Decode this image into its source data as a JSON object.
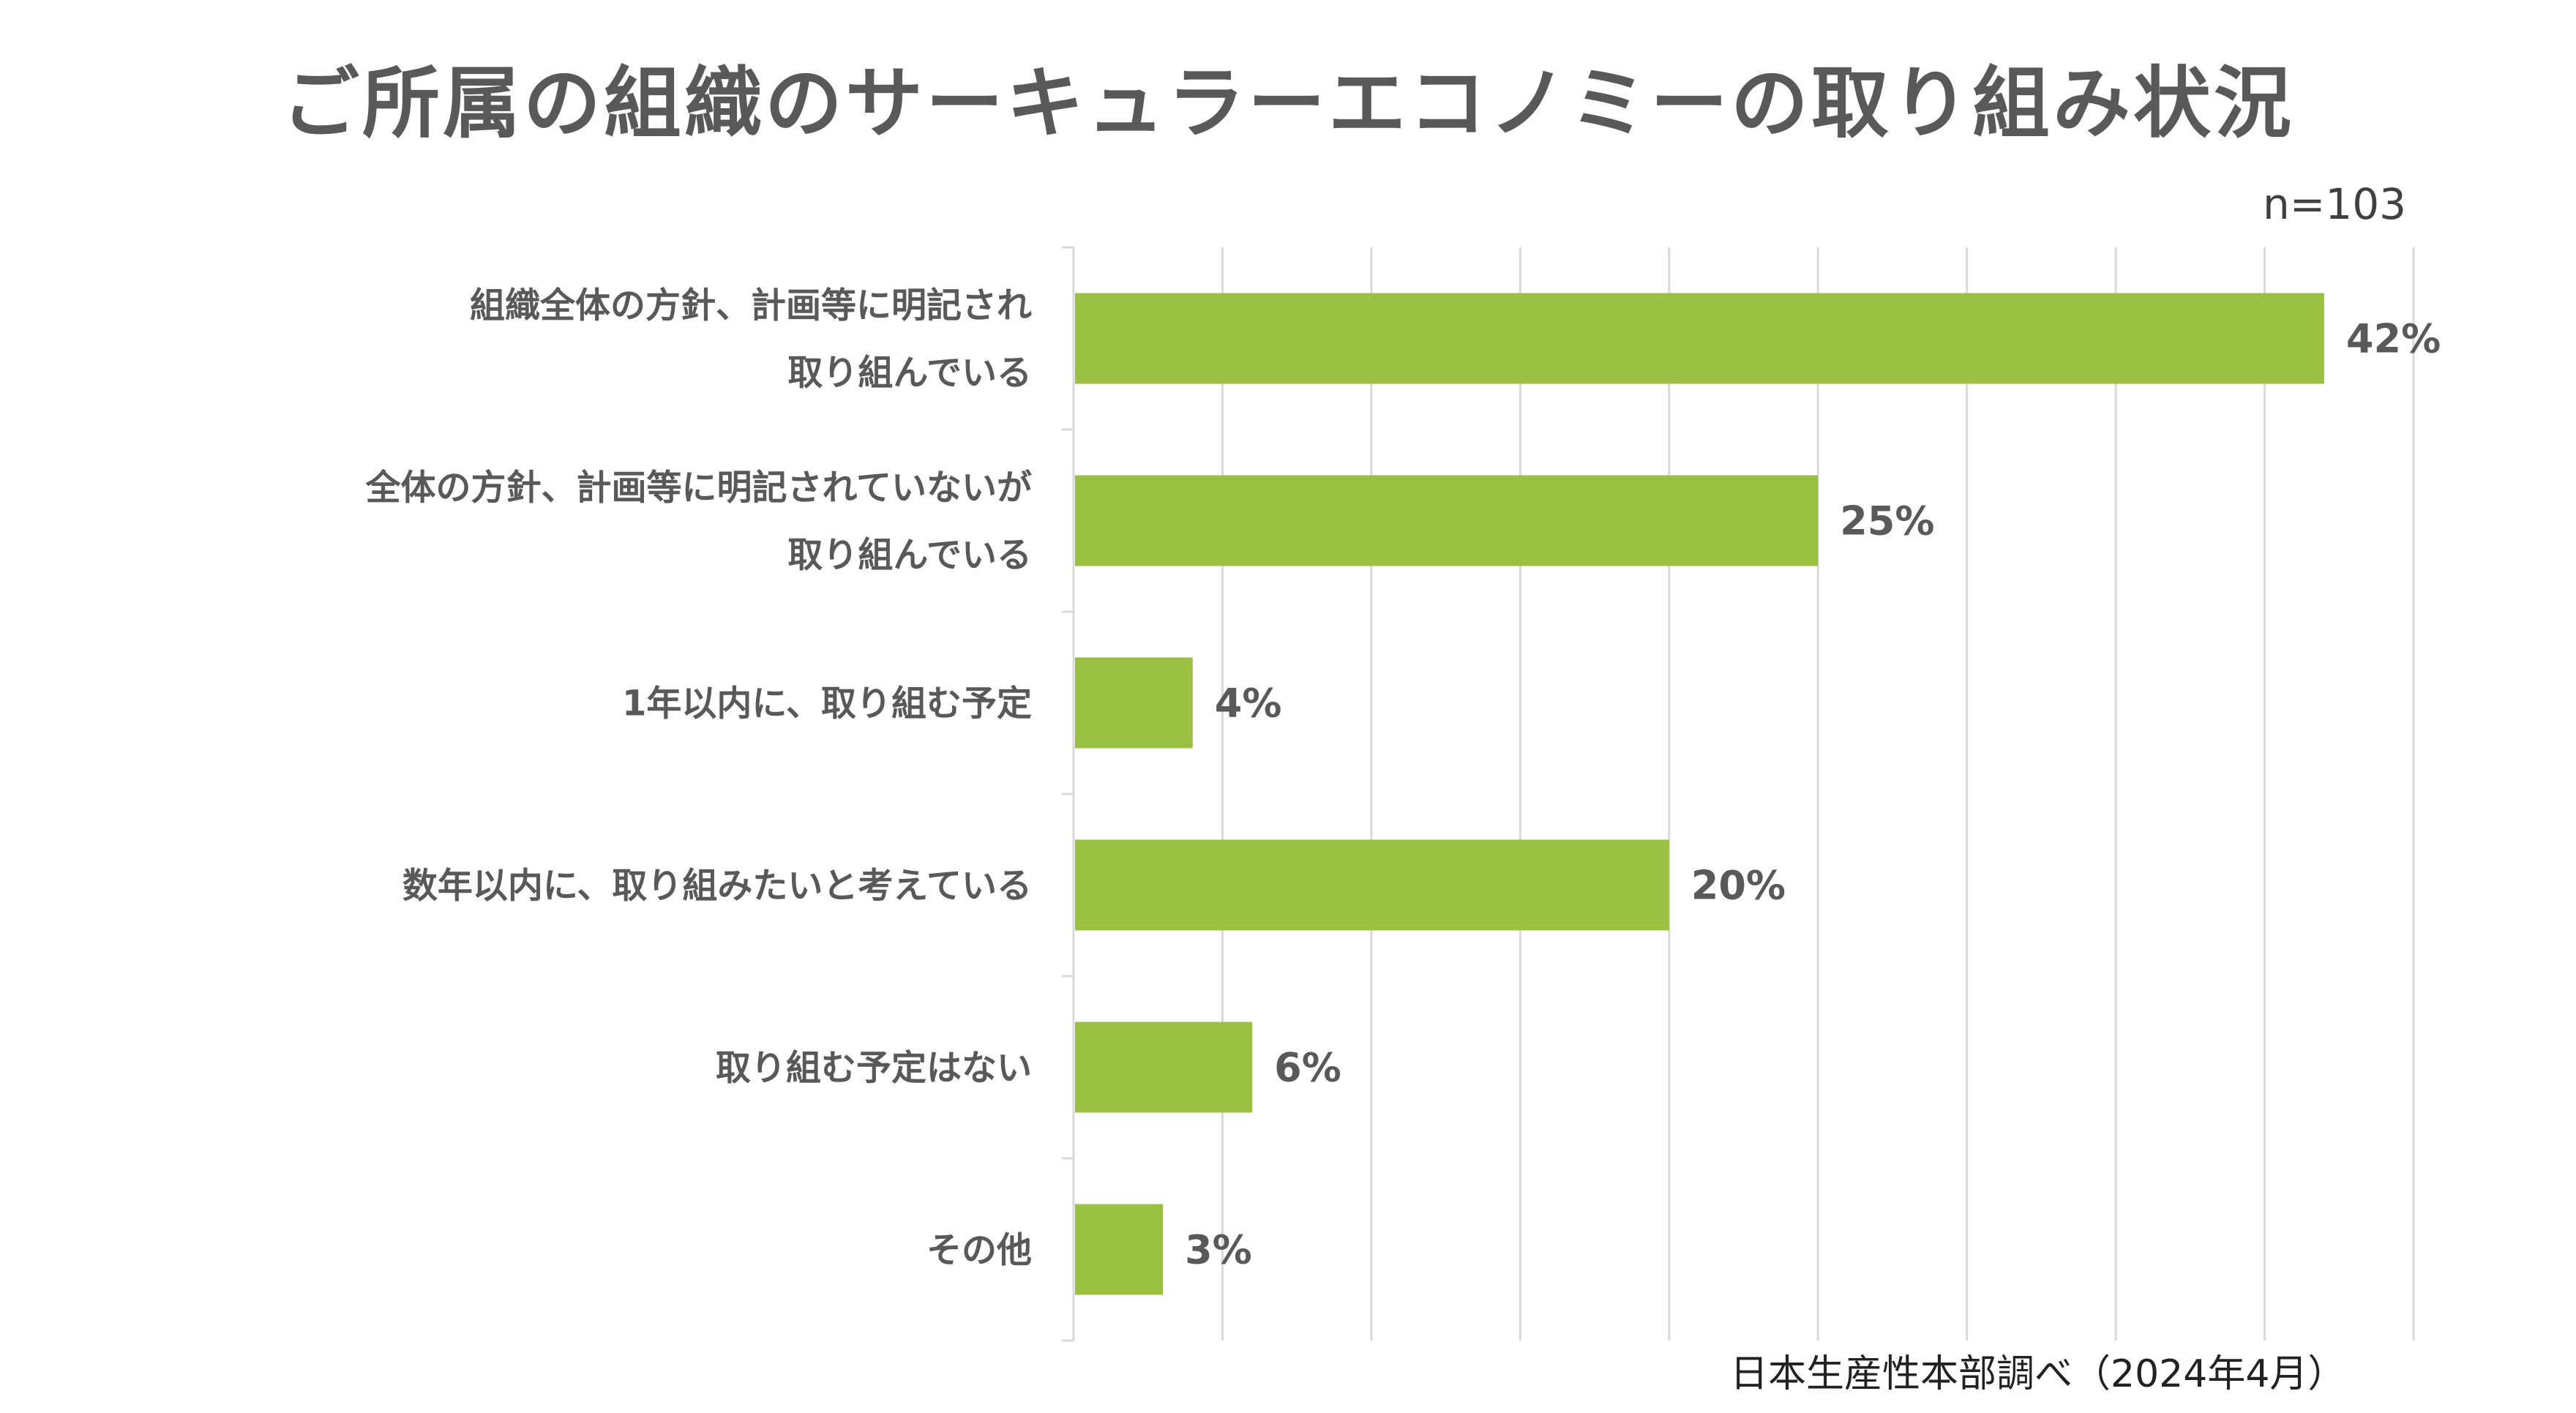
{
  "chart_data": {
    "type": "bar",
    "orientation": "horizontal",
    "title": "ご所属の組織のサーキュラーエコノミーの取り組み状況",
    "sample_size": "n=103",
    "source": "日本生産性本部調べ（2024年4月）",
    "categories": [
      [
        "組織全体の方針、計画等に明記され",
        "取り組んでいる"
      ],
      [
        "全体の方針、計画等に明記されていないが",
        "取り組んでいる"
      ],
      [
        "1年以内に、取り組む予定"
      ],
      [
        "数年以内に、取り組みたいと考えている"
      ],
      [
        "取り組む予定はない"
      ],
      [
        "その他"
      ]
    ],
    "values": [
      42,
      25,
      4,
      20,
      6,
      3
    ],
    "data_labels": [
      "42%",
      "25%",
      "4%",
      "20%",
      "6%",
      "3%"
    ],
    "unit": "%",
    "xlim": [
      0,
      45
    ],
    "grid_step": 5,
    "grid": true,
    "legend": "none",
    "tick_labels_shown": false,
    "colors": {
      "bar": "#9BC143",
      "grid": "#D9D9D9",
      "text": "#595959"
    }
  }
}
